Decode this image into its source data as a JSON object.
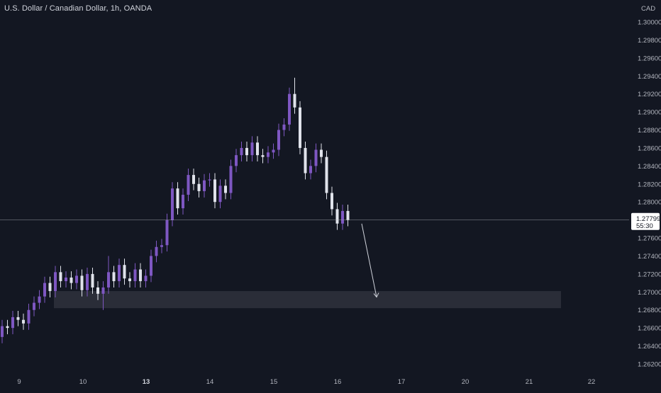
{
  "header": {
    "symbol_title": "U.S. Dollar / Canadian Dollar, 1h, OANDA"
  },
  "axis": {
    "currency": "CAD",
    "price_ticks": [
      "1.30000",
      "1.29800",
      "1.29600",
      "1.29400",
      "1.29200",
      "1.29000",
      "1.28800",
      "1.28600",
      "1.28400",
      "1.28200",
      "1.28000",
      "1.27600",
      "1.27400",
      "1.27200",
      "1.27000",
      "1.26800",
      "1.26600",
      "1.26400",
      "1.26200"
    ],
    "date_ticks": [
      "9",
      "10",
      "13",
      "14",
      "15",
      "16",
      "17",
      "20",
      "21",
      "22"
    ],
    "bold_date_ticks": [
      "13"
    ]
  },
  "last_price": {
    "value": "1.27799",
    "countdown": "55:30"
  },
  "colors": {
    "background": "#131722",
    "up": "#7e57c2",
    "down": "#e0e3eb",
    "axis_text": "#b2b5be",
    "zone": "#2a2d38",
    "price_line": "#b2b5be"
  },
  "chart_data": {
    "type": "candlestick",
    "title": "U.S. Dollar / Canadian Dollar, 1h, OANDA",
    "ylim": [
      1.261,
      1.301
    ],
    "y_unit": "CAD",
    "last_price": 1.27799,
    "series": [
      {
        "name": "USDCAD",
        "path": [
          [
            1.265,
            1.2662
          ],
          [
            1.2662,
            1.266
          ],
          [
            1.266,
            1.2672
          ],
          [
            1.2672,
            1.2669
          ],
          [
            1.2669,
            1.2665
          ],
          [
            1.2665,
            1.268
          ],
          [
            1.268,
            1.2688
          ],
          [
            1.2688,
            1.2695
          ],
          [
            1.2695,
            1.271
          ],
          [
            1.271,
            1.2701
          ],
          [
            1.2701,
            1.2722
          ],
          [
            1.2722,
            1.2712
          ],
          [
            1.2712,
            1.2716
          ],
          [
            1.2716,
            1.271
          ],
          [
            1.271,
            1.2718
          ],
          [
            1.2718,
            1.2702
          ],
          [
            1.2702,
            1.272
          ],
          [
            1.272,
            1.2705
          ],
          [
            1.2705,
            1.2698
          ],
          [
            1.2698,
            1.2705
          ],
          [
            1.2705,
            1.2722
          ],
          [
            1.2722,
            1.2712
          ],
          [
            1.2712,
            1.273
          ],
          [
            1.273,
            1.2715
          ],
          [
            1.2715,
            1.2712
          ],
          [
            1.2712,
            1.2725
          ],
          [
            1.2725,
            1.2712
          ],
          [
            1.2712,
            1.2718
          ],
          [
            1.2718,
            1.274
          ],
          [
            1.274,
            1.275
          ],
          [
            1.275,
            1.2752
          ],
          [
            1.2752,
            1.278
          ],
          [
            1.278,
            1.2815
          ],
          [
            1.2815,
            1.2793
          ],
          [
            1.2793,
            1.2808
          ],
          [
            1.2808,
            1.283
          ],
          [
            1.283,
            1.282
          ],
          [
            1.282,
            1.2812
          ],
          [
            1.2812,
            1.2824
          ],
          [
            1.2824,
            1.2825
          ],
          [
            1.2825,
            1.28
          ],
          [
            1.28,
            1.2818
          ],
          [
            1.2818,
            1.281
          ],
          [
            1.281,
            1.284
          ],
          [
            1.284,
            1.2852
          ],
          [
            1.2852,
            1.286
          ],
          [
            1.286,
            1.2852
          ],
          [
            1.2852,
            1.2866
          ],
          [
            1.2866,
            1.2852
          ],
          [
            1.2852,
            1.285
          ],
          [
            1.285,
            1.2855
          ],
          [
            1.2855,
            1.2858
          ],
          [
            1.2858,
            1.288
          ],
          [
            1.288,
            1.2886
          ],
          [
            1.2886,
            1.292
          ],
          [
            1.292,
            1.2905
          ],
          [
            1.2905,
            1.286
          ],
          [
            1.286,
            1.2832
          ],
          [
            1.2832,
            1.284
          ],
          [
            1.284,
            1.2858
          ],
          [
            1.2858,
            1.285
          ],
          [
            1.285,
            1.281
          ],
          [
            1.281,
            1.2792
          ],
          [
            1.2792,
            1.2776
          ],
          [
            1.2776,
            1.279
          ],
          [
            1.279,
            1.278
          ]
        ]
      }
    ],
    "demand_zone": {
      "y_range": [
        1.2682,
        1.2701
      ],
      "x_range": [
        "9",
        "21"
      ]
    },
    "projection_arrow": {
      "from_price": 1.2779,
      "to_price": 1.2688,
      "direction": "down"
    }
  }
}
